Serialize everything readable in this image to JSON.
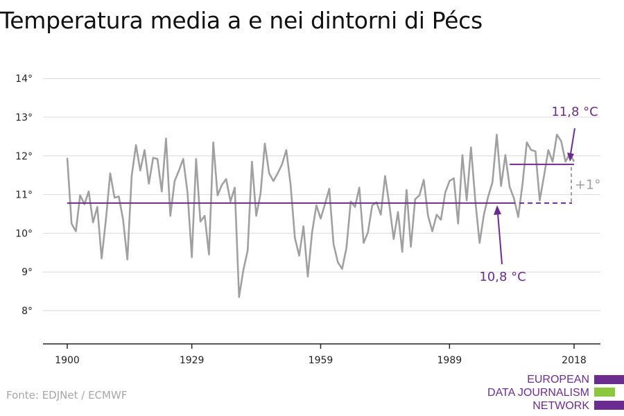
{
  "title": "Temperatura media a e nei dintorni di Pécs",
  "source": "Fonte: EDJNet / ECMWF",
  "logo": {
    "lines": [
      "EUROPEAN",
      "DATA JOURNALISM",
      "NETWORK"
    ],
    "colors": [
      "#6b2c8f",
      "#8dc63f",
      "#6b2c8f"
    ]
  },
  "colors": {
    "line": "#a0a0a0",
    "accent": "#6b2c8f",
    "delta": "#a0a0a0",
    "grid": "#d9d9d9",
    "axis": "#222222"
  },
  "chart_data": {
    "type": "line",
    "title": "Temperatura media a e nei dintorni di Pécs",
    "xlabel": "",
    "ylabel": "",
    "xlim": [
      1900,
      2018
    ],
    "ylim": [
      7.5,
      14.2
    ],
    "y_ticks": [
      8,
      9,
      10,
      11,
      12,
      13,
      14
    ],
    "y_tick_labels": [
      "8°",
      "9°",
      "10°",
      "11°",
      "12°",
      "13°",
      "14°"
    ],
    "x_ticks": [
      1900,
      1929,
      1959,
      1989,
      2018
    ],
    "x_tick_labels": [
      "1900",
      "1929",
      "1959",
      "1989",
      "2018"
    ],
    "grid": true,
    "series": [
      {
        "x": [
          1900,
          1901,
          1902,
          1903,
          1904,
          1905,
          1906,
          1907,
          1908,
          1909,
          1910,
          1911,
          1912,
          1913,
          1914,
          1915,
          1916,
          1917,
          1918,
          1919,
          1920,
          1921,
          1922,
          1923,
          1924,
          1925,
          1926,
          1927,
          1928,
          1929,
          1930,
          1931,
          1932,
          1933,
          1934,
          1935,
          1936,
          1937,
          1938,
          1939,
          1940,
          1941,
          1942,
          1943,
          1944,
          1945,
          1946,
          1947,
          1948,
          1949,
          1950,
          1951,
          1952,
          1953,
          1954,
          1955,
          1956,
          1957,
          1958,
          1959,
          1960,
          1961,
          1962,
          1963,
          1964,
          1965,
          1966,
          1967,
          1968,
          1969,
          1970,
          1971,
          1972,
          1973,
          1974,
          1975,
          1976,
          1977,
          1978,
          1979,
          1980,
          1981,
          1982,
          1983,
          1984,
          1985,
          1986,
          1987,
          1988,
          1989,
          1990,
          1991,
          1992,
          1993,
          1994,
          1995,
          1996,
          1997,
          1998,
          1999,
          2000,
          2001,
          2002,
          2003,
          2004,
          2005,
          2006,
          2007,
          2008,
          2009,
          2010,
          2011,
          2012,
          2013,
          2014,
          2015,
          2016,
          2017,
          2018
        ],
        "values": [
          11.95,
          10.25,
          10.05,
          10.98,
          10.75,
          11.08,
          10.28,
          10.68,
          9.35,
          10.35,
          11.55,
          10.92,
          10.95,
          10.35,
          9.32,
          11.48,
          12.28,
          11.62,
          12.15,
          11.28,
          11.95,
          11.92,
          11.08,
          12.45,
          10.45,
          11.35,
          11.62,
          11.92,
          11.05,
          9.38,
          11.92,
          10.3,
          10.45,
          9.45,
          12.35,
          10.98,
          11.25,
          11.4,
          10.82,
          11.18,
          8.35,
          9.05,
          9.55,
          11.85,
          10.45,
          11.02,
          12.32,
          11.55,
          11.35,
          11.55,
          11.78,
          12.15,
          11.25,
          9.88,
          9.42,
          10.18,
          8.88,
          10.02,
          10.72,
          10.38,
          10.75,
          11.15,
          9.72,
          9.25,
          9.08,
          9.62,
          10.82,
          10.68,
          11.18,
          9.75,
          10.02,
          10.72,
          10.8,
          10.48,
          11.48,
          10.72,
          9.85,
          10.55,
          9.52,
          11.12,
          9.65,
          10.88,
          10.98,
          11.38,
          10.45,
          10.05,
          10.48,
          10.35,
          11.05,
          11.35,
          11.42,
          10.25,
          12.02,
          10.85,
          12.22,
          10.85,
          9.75,
          10.48,
          10.95,
          11.32,
          12.55,
          11.22,
          12.02,
          11.2,
          10.9,
          10.42,
          11.28,
          12.35,
          12.15,
          12.12,
          10.85,
          11.48,
          12.15,
          11.85,
          12.55,
          12.38,
          11.85,
          12.05,
          11.85
        ]
      }
    ],
    "reference_lines": [
      {
        "label": "10,8 °C",
        "value": 10.78,
        "x_start": 1900,
        "x_end": 2003
      },
      {
        "label": "11,8 °C",
        "value": 11.78,
        "x_start": 2003,
        "x_end": 2018
      }
    ],
    "annotations": {
      "delta": "+1°"
    }
  }
}
